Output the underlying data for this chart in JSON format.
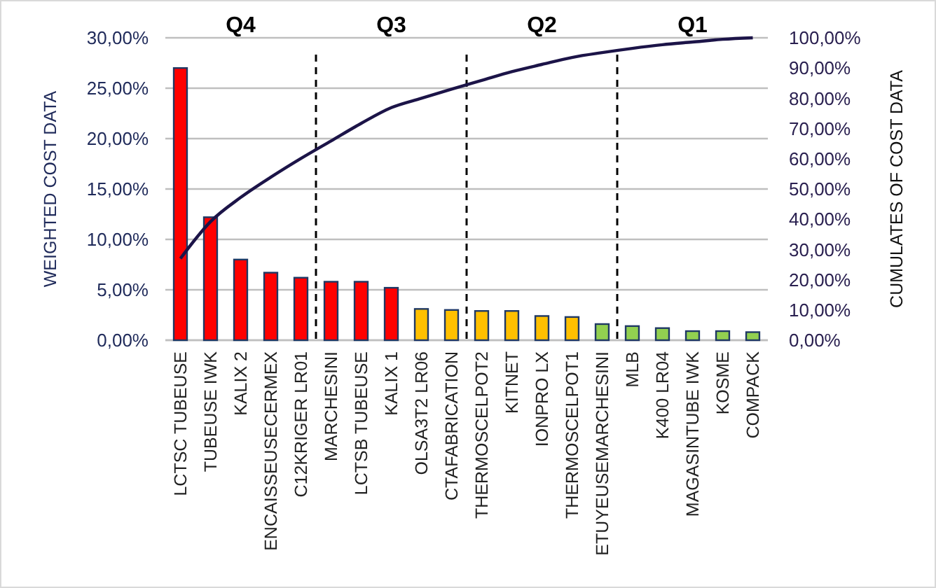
{
  "chart_data": {
    "type": "bar",
    "ylabel": "WEIGHTED COST DATA",
    "y2label": "CUMULATES OF COST DATA",
    "categories": [
      "LCTSC TUBEUSE",
      "TUBEUSE IWK",
      "KALIX 2",
      "ENCAISSEUSECERMEX",
      "C12KRIGER LR01",
      "MARCHESINI",
      "LCTSB TUBEUSE",
      "KALIX 1",
      "OLSA3T2 LR06",
      "CTAFABRICATION",
      "THERMOSCELPOT2",
      "KITNET",
      "IONPRO LX",
      "THERMOSCELPOT1",
      "ETUYEUSEMARCHESINI",
      "MLB",
      "K400 LR04",
      "MAGASINTUBE IWK",
      "KOSME",
      "COMPACK"
    ],
    "series": [
      {
        "values": [
          27,
          12.2,
          8,
          6.7,
          6.2,
          5.8,
          5.8,
          5.2,
          3.1,
          3.0,
          2.9,
          2.9,
          2.4,
          2.3,
          1.6,
          1.4,
          1.2,
          0.9,
          0.9,
          0.8
        ],
        "colors": [
          "#ff0000",
          "#ff0000",
          "#ff0000",
          "#ff0000",
          "#ff0000",
          "#ff0000",
          "#ff0000",
          "#ff0000",
          "#ffc000",
          "#ffc000",
          "#ffc000",
          "#ffc000",
          "#ffc000",
          "#ffc000",
          "#92d050",
          "#92d050",
          "#92d050",
          "#92d050",
          "#92d050",
          "#92d050"
        ]
      },
      {
        "type": "line",
        "axis": "y2",
        "color": "#1c1448",
        "values": [
          27,
          39.2,
          47.2,
          53.9,
          60.1,
          65.9,
          71.7,
          76.9,
          80,
          83,
          85.9,
          88.8,
          91.2,
          93.5,
          95.1,
          96.5,
          97.7,
          98.6,
          99.5,
          100
        ]
      }
    ],
    "ylim": [
      0,
      30
    ],
    "yticks": [
      {
        "value": 0,
        "label": "0,00%"
      },
      {
        "value": 5,
        "label": "5,00%"
      },
      {
        "value": 10,
        "label": "10,00%"
      },
      {
        "value": 15,
        "label": "15,00%"
      },
      {
        "value": 20,
        "label": "20,00%"
      },
      {
        "value": 25,
        "label": "25,00%"
      },
      {
        "value": 30,
        "label": "30,00%"
      }
    ],
    "y2lim": [
      0,
      100
    ],
    "y2ticks": [
      {
        "value": 0,
        "label": "0,00%"
      },
      {
        "value": 10,
        "label": "10,00%"
      },
      {
        "value": 20,
        "label": "20,00%"
      },
      {
        "value": 30,
        "label": "30,00%"
      },
      {
        "value": 40,
        "label": "40,00%"
      },
      {
        "value": 50,
        "label": "50,00%"
      },
      {
        "value": 60,
        "label": "60,00%"
      },
      {
        "value": 70,
        "label": "70,00%"
      },
      {
        "value": 80,
        "label": "80,00%"
      },
      {
        "value": 90,
        "label": "90,00%"
      },
      {
        "value": 100,
        "label": "100,00%"
      }
    ],
    "grid": "y",
    "marker": "none",
    "line_style": "solid",
    "annotations": [
      {
        "text": "Q4",
        "x": "KALIX 2"
      },
      {
        "text": "Q3",
        "x": "KALIX 1"
      },
      {
        "text": "Q2",
        "x": "IONPRO LX"
      },
      {
        "text": "Q1",
        "x": "MAGASINTUBE IWK"
      }
    ]
  }
}
